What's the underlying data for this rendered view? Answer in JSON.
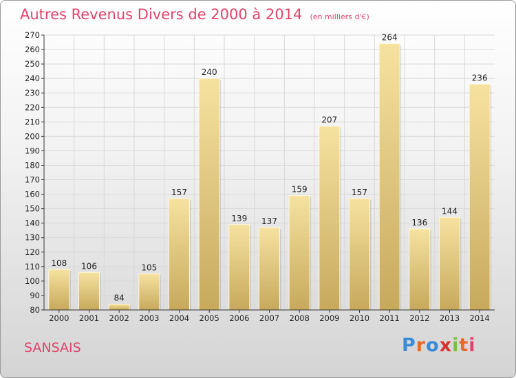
{
  "header": {
    "title": "Autres Revenus Divers de 2000 à 2014",
    "unit": "(en milliers d'€)"
  },
  "footer": {
    "commune": "SANSAIS",
    "logo": "Proxiti",
    "logo_colors": [
      "#3a8ad6",
      "#e8682a",
      "#3a8ad6",
      "#d93030",
      "#7cc042",
      "#e8682a",
      "#e0446a"
    ]
  },
  "colors": {
    "bar_light": "#f6e2a0",
    "bar_dark": "#c7a95c",
    "grid": "#d8d8d8",
    "accent": "#e0446a"
  },
  "chart_data": {
    "type": "bar",
    "categories": [
      "2000",
      "2001",
      "2002",
      "2003",
      "2004",
      "2005",
      "2006",
      "2007",
      "2008",
      "2009",
      "2010",
      "2011",
      "2012",
      "2013",
      "2014"
    ],
    "values": [
      108,
      106,
      84,
      105,
      157,
      240,
      139,
      137,
      159,
      207,
      157,
      264,
      136,
      144,
      236
    ],
    "ylim": [
      80,
      270
    ],
    "ytick_step": 10,
    "grid": true,
    "title": "Autres Revenus Divers de 2000 à 2014",
    "xlabel": "",
    "ylabel": ""
  }
}
